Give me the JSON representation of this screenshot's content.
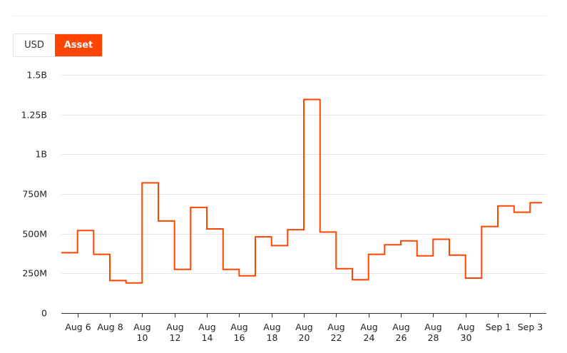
{
  "toggle": {
    "usd_label": "USD",
    "asset_label": "Asset",
    "active": "Asset"
  },
  "colors": {
    "line": "#ff4500",
    "active_button": "#ff4500",
    "grid": "#e6e6e6"
  },
  "chart_data": {
    "type": "line",
    "step": true,
    "title": "",
    "xlabel": "",
    "ylabel": "",
    "ylim": [
      0,
      1500000000
    ],
    "y_ticks": [
      {
        "value": 0,
        "label": "0"
      },
      {
        "value": 250000000,
        "label": "250M"
      },
      {
        "value": 500000000,
        "label": "500M"
      },
      {
        "value": 750000000,
        "label": "750M"
      },
      {
        "value": 1000000000,
        "label": "1B"
      },
      {
        "value": 1250000000,
        "label": "1.25B"
      },
      {
        "value": 1500000000,
        "label": "1.5B"
      }
    ],
    "x_ticks": [
      {
        "date": "2024-08-06",
        "lines": [
          "Aug 6"
        ]
      },
      {
        "date": "2024-08-08",
        "lines": [
          "Aug 8"
        ]
      },
      {
        "date": "2024-08-10",
        "lines": [
          "Aug",
          "10"
        ]
      },
      {
        "date": "2024-08-12",
        "lines": [
          "Aug",
          "12"
        ]
      },
      {
        "date": "2024-08-14",
        "lines": [
          "Aug",
          "14"
        ]
      },
      {
        "date": "2024-08-16",
        "lines": [
          "Aug",
          "16"
        ]
      },
      {
        "date": "2024-08-18",
        "lines": [
          "Aug",
          "18"
        ]
      },
      {
        "date": "2024-08-20",
        "lines": [
          "Aug",
          "20"
        ]
      },
      {
        "date": "2024-08-22",
        "lines": [
          "Aug",
          "22"
        ]
      },
      {
        "date": "2024-08-24",
        "lines": [
          "Aug",
          "24"
        ]
      },
      {
        "date": "2024-08-26",
        "lines": [
          "Aug",
          "26"
        ]
      },
      {
        "date": "2024-08-28",
        "lines": [
          "Aug",
          "28"
        ]
      },
      {
        "date": "2024-08-30",
        "lines": [
          "Aug",
          "30"
        ]
      },
      {
        "date": "2024-09-01",
        "lines": [
          "Sep 1"
        ]
      },
      {
        "date": "2024-09-03",
        "lines": [
          "Sep 3"
        ]
      }
    ],
    "xlim": [
      "2024-08-05",
      "2024-09-03"
    ],
    "series": [
      {
        "points": [
          {
            "x": "2024-08-05",
            "y": 380000000
          },
          {
            "x": "2024-08-06",
            "y": 520000000
          },
          {
            "x": "2024-08-07",
            "y": 370000000
          },
          {
            "x": "2024-08-08",
            "y": 205000000
          },
          {
            "x": "2024-08-09",
            "y": 190000000
          },
          {
            "x": "2024-08-10",
            "y": 820000000
          },
          {
            "x": "2024-08-11",
            "y": 580000000
          },
          {
            "x": "2024-08-12",
            "y": 275000000
          },
          {
            "x": "2024-08-13",
            "y": 665000000
          },
          {
            "x": "2024-08-14",
            "y": 530000000
          },
          {
            "x": "2024-08-15",
            "y": 275000000
          },
          {
            "x": "2024-08-16",
            "y": 235000000
          },
          {
            "x": "2024-08-17",
            "y": 480000000
          },
          {
            "x": "2024-08-18",
            "y": 425000000
          },
          {
            "x": "2024-08-19",
            "y": 525000000
          },
          {
            "x": "2024-08-20",
            "y": 1345000000
          },
          {
            "x": "2024-08-21",
            "y": 510000000
          },
          {
            "x": "2024-08-22",
            "y": 280000000
          },
          {
            "x": "2024-08-23",
            "y": 210000000
          },
          {
            "x": "2024-08-24",
            "y": 370000000
          },
          {
            "x": "2024-08-25",
            "y": 430000000
          },
          {
            "x": "2024-08-26",
            "y": 455000000
          },
          {
            "x": "2024-08-27",
            "y": 360000000
          },
          {
            "x": "2024-08-28",
            "y": 465000000
          },
          {
            "x": "2024-08-29",
            "y": 365000000
          },
          {
            "x": "2024-08-30",
            "y": 220000000
          },
          {
            "x": "2024-08-31",
            "y": 545000000
          },
          {
            "x": "2024-09-01",
            "y": 675000000
          },
          {
            "x": "2024-09-02",
            "y": 635000000
          },
          {
            "x": "2024-09-03",
            "y": 695000000
          }
        ]
      }
    ]
  }
}
